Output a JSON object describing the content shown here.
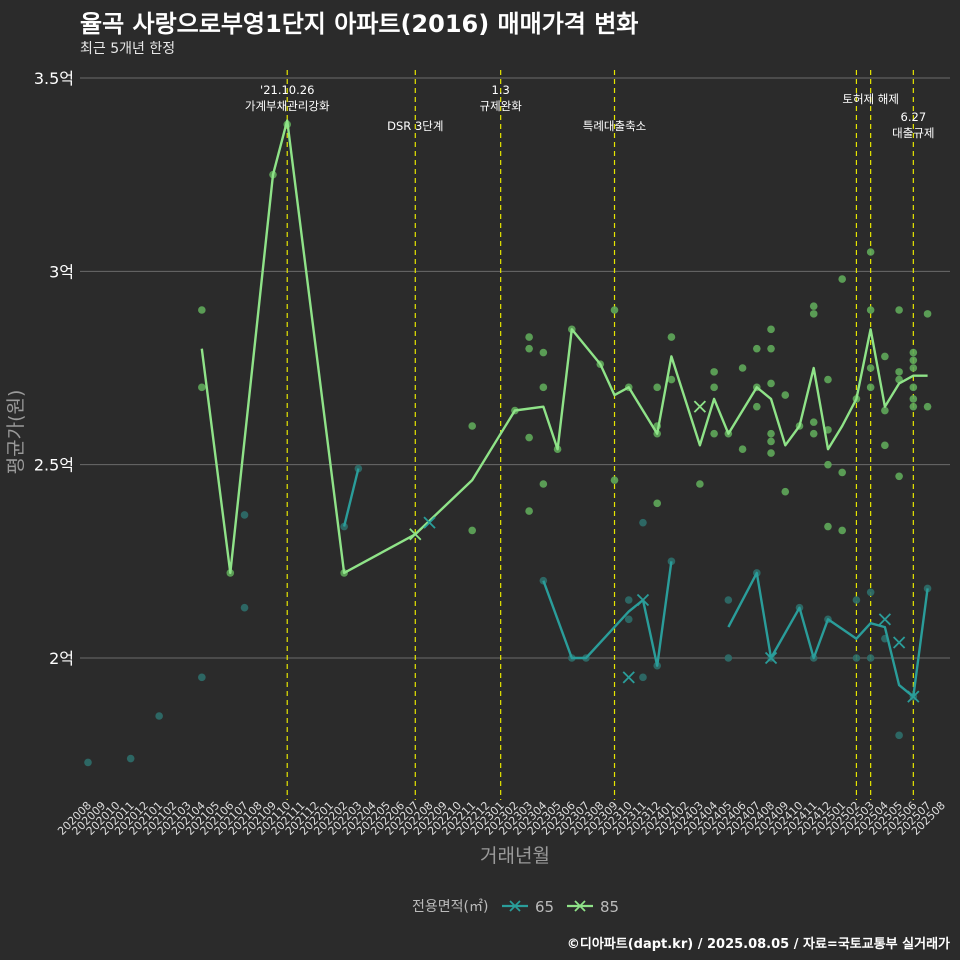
{
  "title": "율곡 사랑으로부영1단지 아파트(2016) 매매가격 변화",
  "subtitle": "최근 5개년 한정",
  "caption": "©디아파트(dapt.kr) / 2025.08.05 / 자료=국토교통부 실거래가",
  "colors": {
    "background": "#2b2b2b",
    "grid": "#6b6b6b",
    "series_65": "#2a9d9a",
    "series_85": "#8fe388",
    "dot_65": "#2e6e6a",
    "dot_85": "#5fa85a",
    "event_line": "#e6e600",
    "text": "#ffffff",
    "axis_title": "#9a9a9a"
  },
  "chart_data": {
    "type": "line",
    "xlabel": "거래년월",
    "ylabel": "평균가(원)",
    "y_unit": "억",
    "ylim": [
      1.65,
      3.55
    ],
    "y_ticks": [
      {
        "value": 2.0,
        "label": "2억"
      },
      {
        "value": 2.5,
        "label": "2.5억"
      },
      {
        "value": 3.0,
        "label": "3억"
      },
      {
        "value": 3.5,
        "label": "3.5억"
      }
    ],
    "x_ticks": [
      "202008",
      "202009",
      "202010",
      "202011",
      "202012",
      "202101",
      "202102",
      "202103",
      "202104",
      "202105",
      "202106",
      "202107",
      "202108",
      "202109",
      "202110",
      "202111",
      "202112",
      "202201",
      "202202",
      "202203",
      "202204",
      "202205",
      "202206",
      "202207",
      "202208",
      "202209",
      "202210",
      "202211",
      "202212",
      "202301",
      "202302",
      "202303",
      "202304",
      "202305",
      "202306",
      "202307",
      "202308",
      "202309",
      "202310",
      "202311",
      "202312",
      "202401",
      "202402",
      "202403",
      "202404",
      "202405",
      "202406",
      "202407",
      "202408",
      "202409",
      "202410",
      "202411",
      "202412",
      "202501",
      "202502",
      "202503",
      "202504",
      "202505",
      "202506",
      "202507",
      "202508"
    ],
    "legend_title": "전용면적(㎡)",
    "legend_position": "bottom",
    "grid": true,
    "series": [
      {
        "name": "65",
        "color": "#2a9d9a",
        "lines": [
          [
            [
              "202202",
              2.34
            ],
            [
              "202203",
              2.49
            ]
          ],
          [
            [
              "202304",
              2.2
            ],
            [
              "202306",
              2.0
            ],
            [
              "202307",
              2.0
            ],
            [
              "202310",
              2.12
            ],
            [
              "202311",
              2.15
            ],
            [
              "202312",
              1.98
            ],
            [
              "202401",
              2.25
            ]
          ],
          [
            [
              "202405",
              2.08
            ],
            [
              "202407",
              2.22
            ],
            [
              "202408",
              2.0
            ],
            [
              "202410",
              2.13
            ],
            [
              "202411",
              2.0
            ],
            [
              "202412",
              2.1
            ],
            [
              "202502",
              2.05
            ],
            [
              "202503",
              2.09
            ],
            [
              "202504",
              2.08
            ],
            [
              "202505",
              1.93
            ],
            [
              "202506",
              1.9
            ],
            [
              "202507",
              2.18
            ]
          ]
        ],
        "points": [
          [
            "202008",
            1.73
          ],
          [
            "202011",
            1.74
          ],
          [
            "202101",
            1.85
          ],
          [
            "202104",
            1.95
          ],
          [
            "202107",
            2.37
          ],
          [
            "202107",
            2.13
          ],
          [
            "202202",
            2.34
          ],
          [
            "202203",
            2.49
          ],
          [
            "202304",
            2.2
          ],
          [
            "202306",
            2.0
          ],
          [
            "202307",
            2.0
          ],
          [
            "202310",
            2.1
          ],
          [
            "202310",
            2.15
          ],
          [
            "202311",
            1.95
          ],
          [
            "202311",
            2.35
          ],
          [
            "202312",
            1.98
          ],
          [
            "202401",
            2.25
          ],
          [
            "202405",
            2.15
          ],
          [
            "202405",
            2.0
          ],
          [
            "202407",
            2.22
          ],
          [
            "202408",
            2.0
          ],
          [
            "202410",
            2.13
          ],
          [
            "202411",
            2.0
          ],
          [
            "202412",
            2.1
          ],
          [
            "202502",
            2.0
          ],
          [
            "202502",
            2.15
          ],
          [
            "202503",
            2.0
          ],
          [
            "202503",
            2.17
          ],
          [
            "202504",
            2.05
          ],
          [
            "202505",
            1.8
          ],
          [
            "202506",
            1.9
          ],
          [
            "202507",
            2.18
          ]
        ],
        "markers": [
          [
            "202208",
            2.35
          ],
          [
            "202310",
            1.95
          ],
          [
            "202311",
            2.15
          ],
          [
            "202408",
            2.0
          ],
          [
            "202504",
            2.1
          ],
          [
            "202505",
            2.04
          ],
          [
            "202506",
            1.9
          ]
        ]
      },
      {
        "name": "85",
        "color": "#8fe388",
        "lines": [
          [
            [
              "202104",
              2.8
            ],
            [
              "202106",
              2.22
            ],
            [
              "202109",
              3.25
            ],
            [
              "202110",
              3.39
            ],
            [
              "202202",
              2.22
            ],
            [
              "202207",
              2.32
            ],
            [
              "202211",
              2.46
            ],
            [
              "202302",
              2.64
            ],
            [
              "202304",
              2.65
            ],
            [
              "202305",
              2.54
            ],
            [
              "202306",
              2.85
            ],
            [
              "202308",
              2.76
            ],
            [
              "202309",
              2.68
            ],
            [
              "202310",
              2.7
            ],
            [
              "202312",
              2.58
            ],
            [
              "202401",
              2.78
            ],
            [
              "202403",
              2.55
            ],
            [
              "202404",
              2.67
            ],
            [
              "202405",
              2.58
            ],
            [
              "202407",
              2.7
            ],
            [
              "202408",
              2.67
            ],
            [
              "202409",
              2.55
            ],
            [
              "202410",
              2.6
            ],
            [
              "202411",
              2.75
            ],
            [
              "202412",
              2.54
            ],
            [
              "202501",
              2.6
            ],
            [
              "202502",
              2.67
            ],
            [
              "202503",
              2.85
            ],
            [
              "202504",
              2.65
            ],
            [
              "202505",
              2.71
            ],
            [
              "202506",
              2.73
            ],
            [
              "202507",
              2.73
            ]
          ]
        ],
        "points": [
          [
            "202104",
            2.9
          ],
          [
            "202104",
            2.7
          ],
          [
            "202106",
            2.22
          ],
          [
            "202109",
            3.25
          ],
          [
            "202110",
            3.38
          ],
          [
            "202202",
            2.22
          ],
          [
            "202211",
            2.6
          ],
          [
            "202211",
            2.33
          ],
          [
            "202302",
            2.64
          ],
          [
            "202303",
            2.83
          ],
          [
            "202303",
            2.8
          ],
          [
            "202303",
            2.57
          ],
          [
            "202303",
            2.38
          ],
          [
            "202304",
            2.79
          ],
          [
            "202304",
            2.7
          ],
          [
            "202304",
            2.45
          ],
          [
            "202305",
            2.54
          ],
          [
            "202306",
            2.85
          ],
          [
            "202308",
            2.76
          ],
          [
            "202309",
            2.9
          ],
          [
            "202309",
            2.46
          ],
          [
            "202310",
            2.7
          ],
          [
            "202312",
            2.6
          ],
          [
            "202312",
            2.58
          ],
          [
            "202312",
            2.4
          ],
          [
            "202312",
            2.7
          ],
          [
            "202401",
            2.83
          ],
          [
            "202401",
            2.72
          ],
          [
            "202403",
            2.45
          ],
          [
            "202404",
            2.74
          ],
          [
            "202404",
            2.7
          ],
          [
            "202404",
            2.58
          ],
          [
            "202405",
            2.58
          ],
          [
            "202406",
            2.75
          ],
          [
            "202406",
            2.54
          ],
          [
            "202407",
            2.8
          ],
          [
            "202407",
            2.7
          ],
          [
            "202407",
            2.65
          ],
          [
            "202408",
            2.85
          ],
          [
            "202408",
            2.8
          ],
          [
            "202408",
            2.71
          ],
          [
            "202408",
            2.58
          ],
          [
            "202408",
            2.56
          ],
          [
            "202408",
            2.53
          ],
          [
            "202409",
            2.43
          ],
          [
            "202409",
            2.68
          ],
          [
            "202410",
            2.6
          ],
          [
            "202411",
            2.91
          ],
          [
            "202411",
            2.89
          ],
          [
            "202411",
            2.61
          ],
          [
            "202411",
            2.58
          ],
          [
            "202412",
            2.72
          ],
          [
            "202412",
            2.59
          ],
          [
            "202412",
            2.5
          ],
          [
            "202412",
            2.34
          ],
          [
            "202501",
            2.98
          ],
          [
            "202501",
            2.48
          ],
          [
            "202501",
            2.33
          ],
          [
            "202502",
            2.67
          ],
          [
            "202503",
            3.05
          ],
          [
            "202503",
            2.9
          ],
          [
            "202503",
            2.75
          ],
          [
            "202503",
            2.7
          ],
          [
            "202504",
            2.78
          ],
          [
            "202504",
            2.64
          ],
          [
            "202504",
            2.55
          ],
          [
            "202505",
            2.9
          ],
          [
            "202505",
            2.74
          ],
          [
            "202505",
            2.72
          ],
          [
            "202505",
            2.47
          ],
          [
            "202506",
            2.79
          ],
          [
            "202506",
            2.77
          ],
          [
            "202506",
            2.75
          ],
          [
            "202506",
            2.7
          ],
          [
            "202506",
            2.67
          ],
          [
            "202506",
            2.65
          ],
          [
            "202507",
            2.89
          ],
          [
            "202507",
            2.65
          ]
        ],
        "markers": [
          [
            "202207",
            2.32
          ],
          [
            "202403",
            2.65
          ]
        ]
      }
    ],
    "annotations": [
      {
        "x": "202110",
        "lines": [
          "'21.10.26",
          "가계부채관리강화"
        ],
        "row": 0
      },
      {
        "x": "202207",
        "lines": [
          "DSR 3단계"
        ],
        "row": 2
      },
      {
        "x": "202301",
        "lines": [
          "1.3",
          "규제완화"
        ],
        "row": 0
      },
      {
        "x": "202309",
        "lines": [
          "특례대출축소"
        ],
        "row": 2
      },
      {
        "x": "202502",
        "lines": [],
        "row": 0
      },
      {
        "x": "202503",
        "lines": [
          "토허제 해제"
        ],
        "row": 1
      },
      {
        "x": "202506",
        "lines": [
          "6.27",
          "대출규제"
        ],
        "row": 1.9
      }
    ]
  }
}
